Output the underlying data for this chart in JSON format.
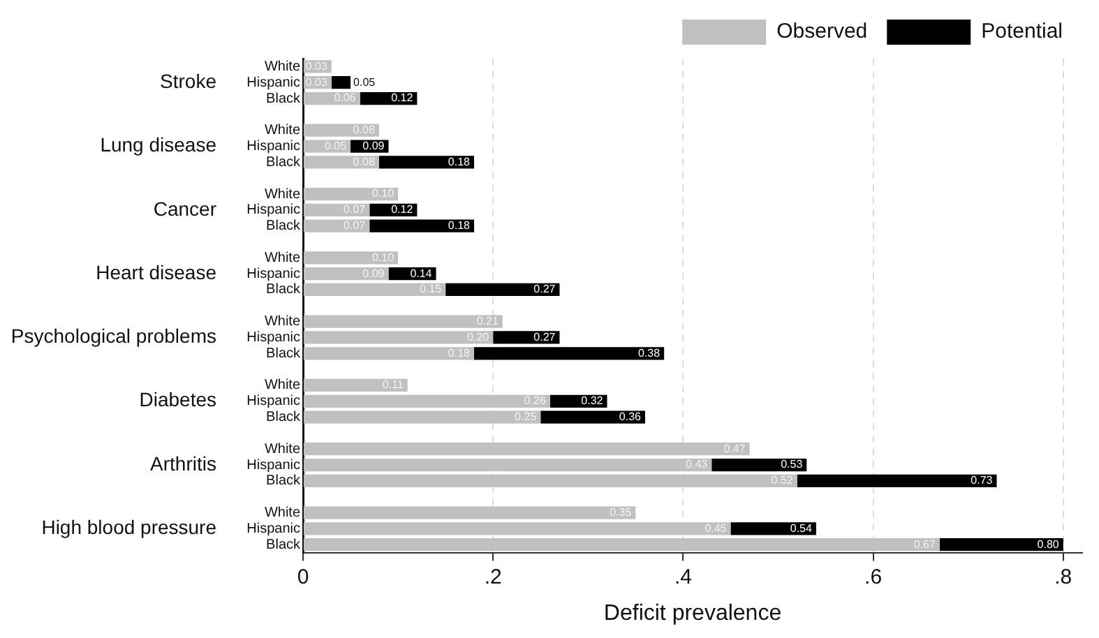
{
  "chart_data": {
    "type": "bar",
    "orientation": "horizontal",
    "stacked": true,
    "xlabel": "Deficit prevalence",
    "categories": [
      "White",
      "Hispanic",
      "Black",
      null,
      "White",
      "Hispanic",
      "Black",
      null,
      "White",
      "Hispanic",
      "Black",
      null,
      "White",
      "Hispanic",
      "Black",
      null,
      "White",
      "Hispanic",
      "Black",
      null,
      "White",
      "Hispanic",
      "Black",
      null,
      "White",
      "Hispanic",
      "Black",
      null,
      "White",
      "Hispanic",
      "Black"
    ],
    "annotations": [
      "Stroke",
      "Lung disease",
      "Cancer",
      "Heart disease",
      "Psychological problems",
      "Diabetes",
      "Arthritis",
      "High blood pressure"
    ],
    "series": [
      {
        "name": "Observed",
        "color": "#c0c0c0",
        "values": [
          0.03,
          0.03,
          0.06,
          null,
          0.08,
          0.05,
          0.08,
          null,
          0.1,
          0.07,
          0.07,
          null,
          0.1,
          0.09,
          0.15,
          null,
          0.21,
          0.2,
          0.18,
          null,
          0.11,
          0.26,
          0.25,
          null,
          0.47,
          0.43,
          0.52,
          null,
          0.35,
          0.45,
          0.67
        ],
        "value_labels": [
          "0.03",
          "0.03",
          "0.06",
          null,
          "0.08",
          "0.05",
          "0.08",
          null,
          "0.10",
          "0.07",
          "0.07",
          null,
          "0.10",
          "0.09",
          "0.15",
          null,
          "0.21",
          "0.20",
          "0.18",
          null,
          "0.11",
          "0.26",
          "0.25",
          null,
          "0.47",
          "0.43",
          "0.52",
          null,
          "0.35",
          "0.45",
          "0.67"
        ]
      },
      {
        "name": "Potential",
        "color": "#000000",
        "values": [
          null,
          0.02,
          0.06,
          null,
          null,
          0.04,
          0.1,
          null,
          null,
          0.05,
          0.11,
          null,
          null,
          0.05,
          0.12,
          null,
          null,
          0.07,
          0.2,
          null,
          null,
          0.06,
          0.11,
          null,
          null,
          0.1,
          0.21,
          null,
          null,
          0.09,
          0.13
        ]
      }
    ],
    "totals": [
      null,
      "0.05",
      "0.12",
      null,
      null,
      "0.09",
      "0.18",
      null,
      null,
      "0.12",
      "0.18",
      null,
      null,
      "0.14",
      "0.27",
      null,
      null,
      "0.27",
      "0.38",
      null,
      null,
      "0.32",
      "0.36",
      null,
      null,
      "0.53",
      "0.73",
      null,
      null,
      "0.54",
      "0.80"
    ],
    "xlim": [
      0,
      0.82
    ],
    "xticks": [
      0,
      {
        "value": 0.2,
        "label": ".2"
      },
      {
        "value": 0.4,
        "label": ".4"
      },
      {
        "value": 0.6,
        "label": ".6"
      },
      {
        "value": 0.8,
        "label": ".8"
      }
    ],
    "grid": "x",
    "legend": "top"
  }
}
